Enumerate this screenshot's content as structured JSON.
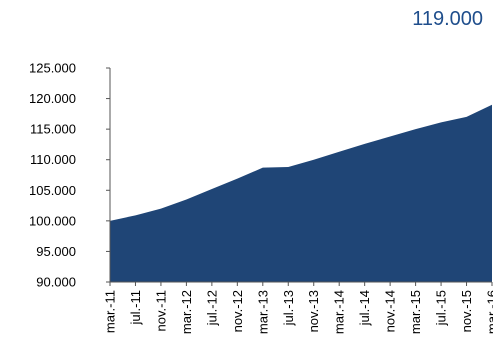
{
  "header": {
    "value_label": "119.000"
  },
  "colors": {
    "area_fill": "#1f4576",
    "headline": "#1f4e8c",
    "axis": "#555555"
  },
  "chart_data": {
    "type": "area",
    "title": "",
    "xlabel": "",
    "ylabel": "",
    "ylim": [
      90000,
      125000
    ],
    "y_ticks": [
      90000,
      95000,
      100000,
      105000,
      110000,
      115000,
      120000,
      125000
    ],
    "y_tick_labels": [
      "90.000",
      "95.000",
      "100.000",
      "105.000",
      "110.000",
      "115.000",
      "120.000",
      "125.000"
    ],
    "x_tick_labels": [
      "mar.-11",
      "jul.-11",
      "nov.-11",
      "mar.-12",
      "jul.-12",
      "nov.-12",
      "mar.-13",
      "jul.-13",
      "nov.-13",
      "mar.-14",
      "jul.-14",
      "nov.-14",
      "mar.-15",
      "jul.-15",
      "nov.-15",
      "mar.-16"
    ],
    "series": [
      {
        "values": [
          100000,
          100900,
          102000,
          103500,
          105200,
          106900,
          108700,
          108800,
          110000,
          111300,
          112600,
          113800,
          115000,
          116100,
          117000,
          119000
        ]
      }
    ],
    "grid": false,
    "legend": "none"
  }
}
